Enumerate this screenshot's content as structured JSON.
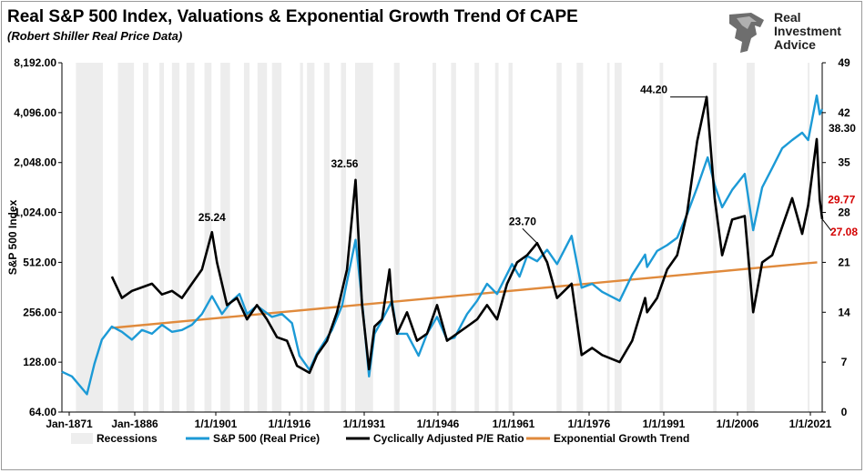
{
  "header": {
    "title": "Real S&P 500 Index, Valuations & Exponential Growth Trend Of CAPE",
    "subtitle": "(Robert Shiller Real Price Data)"
  },
  "logo": {
    "line1": "Real",
    "line2": "Investment",
    "line3": "Advice",
    "icon": "lion-head-icon"
  },
  "chart_data": {
    "type": "line",
    "ylabel": "S&P 500 Index",
    "y_left_ticks": [
      "8,192.00",
      "4,096.00",
      "2,048.00",
      "1,024.00",
      "512.00",
      "256.00",
      "128.00",
      "64.00"
    ],
    "y_left_range": [
      64,
      8192
    ],
    "y_left_scale": "log2",
    "y_right_ticks": [
      "49",
      "42",
      "35",
      "28",
      "21",
      "14",
      "7",
      "0"
    ],
    "y_right_range": [
      0,
      49
    ],
    "x_ticks": [
      "Jan-1871",
      "Jan-1886",
      "1/1/1901",
      "1/1/1916",
      "1/1/1931",
      "1/1/1946",
      "1/1/1961",
      "1/1/1976",
      "1/1/1991",
      "1/1/2006",
      "1/1/2021"
    ],
    "x_range": [
      1871,
      2023
    ],
    "recessions": [
      [
        1873.8,
        1879.2
      ],
      [
        1882.2,
        1885.4
      ],
      [
        1887.2,
        1888.3
      ],
      [
        1890.5,
        1891.4
      ],
      [
        1893.0,
        1894.5
      ],
      [
        1895.9,
        1897.5
      ],
      [
        1899.5,
        1900.9
      ],
      [
        1902.7,
        1904.6
      ],
      [
        1907.4,
        1908.5
      ],
      [
        1910.1,
        1912.0
      ],
      [
        1913.0,
        1914.9
      ],
      [
        1918.6,
        1919.2
      ],
      [
        1920.0,
        1921.5
      ],
      [
        1923.4,
        1924.5
      ],
      [
        1926.8,
        1927.8
      ],
      [
        1929.6,
        1933.2
      ],
      [
        1937.4,
        1938.5
      ],
      [
        1945.1,
        1945.8
      ],
      [
        1948.8,
        1949.8
      ],
      [
        1953.5,
        1954.4
      ],
      [
        1957.6,
        1958.3
      ],
      [
        1960.3,
        1961.1
      ],
      [
        1969.9,
        1970.9
      ],
      [
        1973.9,
        1975.2
      ],
      [
        1980.0,
        1980.5
      ],
      [
        1981.5,
        1982.9
      ],
      [
        1990.5,
        1991.2
      ],
      [
        2001.2,
        2001.9
      ],
      [
        2007.9,
        2009.5
      ],
      [
        2020.1,
        2020.4
      ]
    ],
    "series": [
      {
        "name": "S&P 500 (Real Price)",
        "color": "#1c9ad6",
        "axis": "left",
        "x": [
          1871,
          1873,
          1876,
          1877.5,
          1879,
          1881,
          1883,
          1885,
          1887,
          1889,
          1891,
          1893,
          1895,
          1897,
          1899,
          1901,
          1903,
          1905,
          1906.5,
          1908,
          1910,
          1913,
          1915,
          1917,
          1918.5,
          1920.5,
          1922,
          1925,
          1927,
          1929.7,
          1931,
          1932.4,
          1933.5,
          1935,
          1937,
          1938,
          1940,
          1942.3,
          1944,
          1946,
          1948,
          1949.5,
          1952,
          1954,
          1956,
          1958,
          1961,
          1962.5,
          1964,
          1966,
          1968,
          1970,
          1972.9,
          1974.9,
          1977,
          1979,
          1982.5,
          1985,
          1987.6,
          1988,
          1990,
          1992,
          1994,
          1996,
          1998,
          2000.1,
          2001.5,
          2003,
          2005,
          2007.5,
          2009.2,
          2011,
          2013,
          2015,
          2017,
          2019,
          2020.2,
          2021.9,
          2022.5,
          2023
        ],
        "y": [
          112,
          105,
          82,
          125,
          175,
          210,
          195,
          175,
          200,
          190,
          215,
          195,
          200,
          215,
          250,
          320,
          250,
          300,
          330,
          250,
          280,
          240,
          250,
          220,
          140,
          115,
          145,
          200,
          280,
          700,
          300,
          105,
          190,
          230,
          300,
          190,
          190,
          140,
          190,
          240,
          175,
          180,
          250,
          300,
          380,
          330,
          500,
          420,
          560,
          520,
          610,
          500,
          740,
          360,
          380,
          340,
          300,
          430,
          570,
          480,
          600,
          650,
          720,
          1000,
          1450,
          2200,
          1500,
          1100,
          1400,
          1750,
          800,
          1450,
          1900,
          2500,
          2800,
          3100,
          2800,
          5200,
          4000,
          4300
        ]
      },
      {
        "name": "Cyclically Adjusted P/E Ratio",
        "color": "#000000",
        "axis": "right",
        "x": [
          1881,
          1883,
          1885,
          1887,
          1889,
          1891,
          1893,
          1895,
          1897,
          1899,
          1901,
          1902,
          1904,
          1906,
          1908,
          1910,
          1912,
          1914,
          1916,
          1918,
          1920.5,
          1922,
          1924,
          1926,
          1928,
          1929.7,
          1931,
          1932.4,
          1933.5,
          1935,
          1936.5,
          1937,
          1938,
          1940,
          1942,
          1944,
          1946,
          1948,
          1950,
          1952,
          1954,
          1956,
          1958,
          1960,
          1962,
          1964,
          1966,
          1968,
          1970,
          1972.9,
          1974.9,
          1977,
          1979,
          1982.5,
          1985,
          1987.6,
          1988,
          1990,
          1992,
          1994,
          1996,
          1998,
          1999.9,
          2001.5,
          2003,
          2005,
          2007.5,
          2009.2,
          2011,
          2013,
          2015,
          2017,
          2019,
          2020.2,
          2021.9,
          2022.5,
          2023
        ],
        "y": [
          19,
          16,
          17,
          17.5,
          18,
          16.5,
          17,
          16,
          18,
          20,
          25.24,
          21,
          15,
          16,
          13,
          15,
          13,
          10.5,
          10,
          6.5,
          5.5,
          8,
          10,
          14,
          20,
          32.56,
          15,
          6,
          12,
          13,
          20,
          15,
          11,
          14,
          10,
          11,
          15,
          10,
          11,
          12,
          13,
          15,
          13,
          18,
          21,
          22,
          23.7,
          21,
          16,
          18,
          8,
          9,
          8,
          7,
          10,
          16,
          14,
          16,
          20,
          22,
          28,
          38,
          44.2,
          30,
          22,
          27,
          27.5,
          14,
          21,
          22,
          26,
          30,
          25,
          29,
          38.3,
          29.77,
          27.08
        ]
      },
      {
        "name": "Exponential Growth Trend",
        "color": "#e08a3c",
        "axis": "right",
        "x": [
          1881,
          2022
        ],
        "y": [
          11.8,
          21
        ]
      }
    ],
    "annotations": [
      {
        "label": "25.24",
        "x": 1901,
        "y": 25.24,
        "color": "#000000"
      },
      {
        "label": "32.56",
        "x": 1929.7,
        "y": 32.56,
        "color": "#000000"
      },
      {
        "label": "23.70",
        "x": 1966,
        "y": 23.7,
        "color": "#000000"
      },
      {
        "label": "44.20",
        "x": 1999.9,
        "y": 44.2,
        "color": "#000000"
      },
      {
        "label": "38.30",
        "x": 2021.9,
        "y": 38.3,
        "color": "#000000"
      },
      {
        "label": "29.77",
        "x": 2022.5,
        "y": 29.77,
        "color": "#d40000"
      },
      {
        "label": "27.08",
        "x": 2023,
        "y": 27.08,
        "color": "#d40000"
      }
    ],
    "legend": {
      "placement": "bottom",
      "items": [
        {
          "label": "Recessions",
          "color": "#eeeeee",
          "kind": "band"
        },
        {
          "label": "S&P 500 (Real Price)",
          "color": "#1c9ad6",
          "kind": "line"
        },
        {
          "label": "Cyclically Adjusted P/E Ratio",
          "color": "#000000",
          "kind": "line"
        },
        {
          "label": "Exponential Growth Trend",
          "color": "#e08a3c",
          "kind": "line"
        }
      ]
    }
  }
}
